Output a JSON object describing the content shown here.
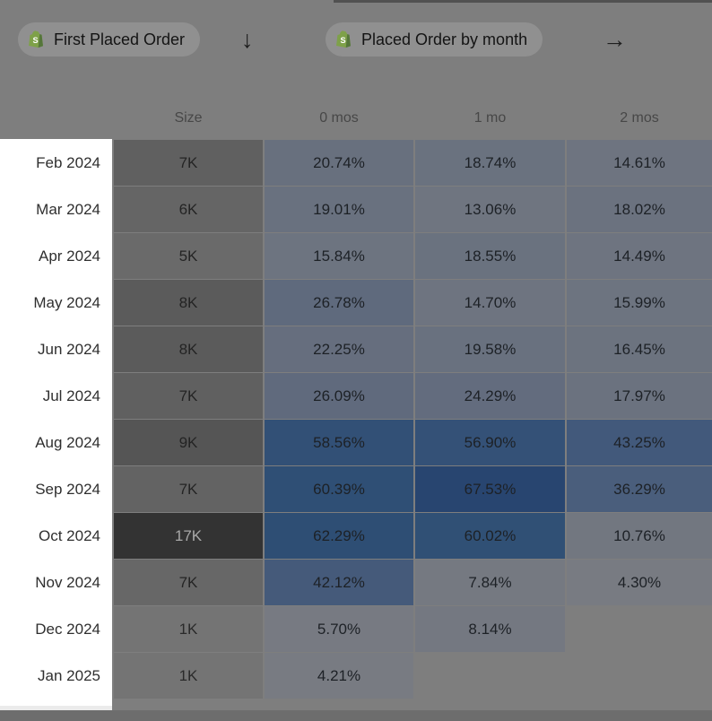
{
  "toolbar": {
    "filter1": {
      "label": "First Placed Order",
      "icon": "shopify-bag"
    },
    "filter2": {
      "label": "Placed Order by month",
      "icon": "shopify-bag"
    },
    "arrow_down": "↓",
    "arrow_right": "→"
  },
  "colors": {
    "page_bg": "#7e7e7e",
    "pill_bg": "#909090",
    "label_col_bg": "#ffffff",
    "bottom_band": "#6d6d6d",
    "heat_low": "#787b82",
    "heat_high": "#284570",
    "size_low": "#747474",
    "size_high": "#333333"
  },
  "table": {
    "columns": [
      "Size",
      "0 mos",
      "1 mo",
      "2 mos"
    ],
    "rows": [
      {
        "label": "Feb 2024",
        "size": "7K",
        "size_bg": "#606060",
        "size_color": "#242424",
        "cells": [
          {
            "v": "20.74%",
            "bg": "#68707e"
          },
          {
            "v": "18.74%",
            "bg": "#6a727f"
          },
          {
            "v": "14.61%",
            "bg": "#6e7480"
          }
        ]
      },
      {
        "label": "Mar 2024",
        "size": "6K",
        "size_bg": "#656565",
        "size_color": "#242424",
        "cells": [
          {
            "v": "19.01%",
            "bg": "#69717f"
          },
          {
            "v": "13.06%",
            "bg": "#6f7580"
          },
          {
            "v": "18.02%",
            "bg": "#6b727f"
          }
        ]
      },
      {
        "label": "Apr 2024",
        "size": "5K",
        "size_bg": "#6a6a6a",
        "size_color": "#242424",
        "cells": [
          {
            "v": "15.84%",
            "bg": "#6d7480"
          },
          {
            "v": "18.55%",
            "bg": "#6a727f"
          },
          {
            "v": "14.49%",
            "bg": "#6e7480"
          }
        ]
      },
      {
        "label": "May 2024",
        "size": "8K",
        "size_bg": "#5b5b5b",
        "size_color": "#242424",
        "cells": [
          {
            "v": "26.78%",
            "bg": "#5f6a7d"
          },
          {
            "v": "14.70%",
            "bg": "#6e7480"
          },
          {
            "v": "15.99%",
            "bg": "#6d7480"
          }
        ]
      },
      {
        "label": "Jun 2024",
        "size": "8K",
        "size_bg": "#5b5b5b",
        "size_color": "#242424",
        "cells": [
          {
            "v": "22.25%",
            "bg": "#666e7e"
          },
          {
            "v": "19.58%",
            "bg": "#69717f"
          },
          {
            "v": "16.45%",
            "bg": "#6c737f"
          }
        ]
      },
      {
        "label": "Jul 2024",
        "size": "7K",
        "size_bg": "#606060",
        "size_color": "#242424",
        "cells": [
          {
            "v": "26.09%",
            "bg": "#606a7d"
          },
          {
            "v": "24.29%",
            "bg": "#636c7e"
          },
          {
            "v": "17.97%",
            "bg": "#6b727f"
          }
        ]
      },
      {
        "label": "Aug 2024",
        "size": "9K",
        "size_bg": "#555555",
        "size_color": "#242424",
        "cells": [
          {
            "v": "58.56%",
            "bg": "#325076"
          },
          {
            "v": "56.90%",
            "bg": "#345177"
          },
          {
            "v": "43.25%",
            "bg": "#42597b"
          }
        ]
      },
      {
        "label": "Sep 2024",
        "size": "7K",
        "size_bg": "#636363",
        "size_color": "#242424",
        "cells": [
          {
            "v": "60.39%",
            "bg": "#2f4f75"
          },
          {
            "v": "67.53%",
            "bg": "#284570"
          },
          {
            "v": "36.29%",
            "bg": "#4a5e7c"
          }
        ]
      },
      {
        "label": "Oct 2024",
        "size": "17K",
        "size_bg": "#333333",
        "size_color": "#a9a9a9",
        "cells": [
          {
            "v": "62.29%",
            "bg": "#2e4e74"
          },
          {
            "v": "60.02%",
            "bg": "#305075"
          },
          {
            "v": "10.76%",
            "bg": "#727780"
          }
        ]
      },
      {
        "label": "Nov 2024",
        "size": "7K",
        "size_bg": "#676767",
        "size_color": "#242424",
        "cells": [
          {
            "v": "42.12%",
            "bg": "#455a7a"
          },
          {
            "v": "7.84%",
            "bg": "#757981"
          },
          {
            "v": "4.30%",
            "bg": "#787b82"
          }
        ]
      },
      {
        "label": "Dec 2024",
        "size": "1K",
        "size_bg": "#747474",
        "size_color": "#2a2a2a",
        "cells": [
          {
            "v": "5.70%",
            "bg": "#777a82"
          },
          {
            "v": "8.14%",
            "bg": "#747881"
          },
          {
            "v": "",
            "bg": ""
          }
        ]
      },
      {
        "label": "Jan 2025",
        "size": "1K",
        "size_bg": "#747474",
        "size_color": "#2a2a2a",
        "cells": [
          {
            "v": "4.21%",
            "bg": "#787b82"
          },
          {
            "v": "",
            "bg": ""
          },
          {
            "v": "",
            "bg": ""
          }
        ]
      }
    ]
  },
  "chart_data": {
    "type": "heatmap",
    "title": "Cohort retention: First Placed Order → Placed Order by month",
    "row_labels": [
      "Feb 2024",
      "Mar 2024",
      "Apr 2024",
      "May 2024",
      "Jun 2024",
      "Jul 2024",
      "Aug 2024",
      "Sep 2024",
      "Oct 2024",
      "Nov 2024",
      "Dec 2024",
      "Jan 2025"
    ],
    "col_labels": [
      "0 mos",
      "1 mo",
      "2 mos"
    ],
    "cohort_sizes": [
      "7K",
      "6K",
      "5K",
      "8K",
      "8K",
      "7K",
      "9K",
      "7K",
      "17K",
      "7K",
      "1K",
      "1K"
    ],
    "values_pct": [
      [
        20.74,
        18.74,
        14.61
      ],
      [
        19.01,
        13.06,
        18.02
      ],
      [
        15.84,
        18.55,
        14.49
      ],
      [
        26.78,
        14.7,
        15.99
      ],
      [
        22.25,
        19.58,
        16.45
      ],
      [
        26.09,
        24.29,
        17.97
      ],
      [
        58.56,
        56.9,
        43.25
      ],
      [
        60.39,
        67.53,
        36.29
      ],
      [
        62.29,
        60.02,
        10.76
      ],
      [
        42.12,
        7.84,
        4.3
      ],
      [
        5.7,
        8.14,
        null
      ],
      [
        4.21,
        null,
        null
      ]
    ]
  }
}
